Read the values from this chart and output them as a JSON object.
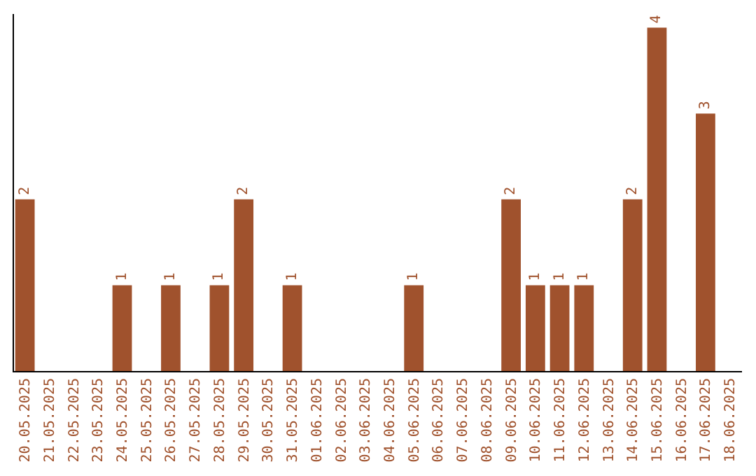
{
  "chart_data": {
    "type": "bar",
    "categories": [
      "20.05.2025",
      "21.05.2025",
      "22.05.2025",
      "23.05.2025",
      "24.05.2025",
      "25.05.2025",
      "26.05.2025",
      "27.05.2025",
      "28.05.2025",
      "29.05.2025",
      "30.05.2025",
      "31.05.2025",
      "01.06.2025",
      "02.06.2025",
      "03.06.2025",
      "04.06.2025",
      "05.06.2025",
      "06.06.2025",
      "07.06.2025",
      "08.06.2025",
      "09.06.2025",
      "10.06.2025",
      "11.06.2025",
      "12.06.2025",
      "13.06.2025",
      "14.06.2025",
      "15.06.2025",
      "16.06.2025",
      "17.06.2025",
      "18.06.2025"
    ],
    "values": [
      2,
      0,
      0,
      0,
      1,
      0,
      1,
      0,
      1,
      2,
      0,
      1,
      0,
      0,
      0,
      0,
      1,
      0,
      0,
      0,
      2,
      1,
      1,
      1,
      0,
      2,
      4,
      0,
      3,
      0
    ],
    "value_labels": [
      "2",
      null,
      null,
      null,
      "1",
      null,
      "1",
      null,
      "1",
      "2",
      null,
      "1",
      null,
      null,
      null,
      null,
      "1",
      null,
      null,
      null,
      "2",
      "1",
      "1",
      "1",
      null,
      "2",
      "4",
      null,
      "3",
      null
    ],
    "color": "#a0522d",
    "ylim": [
      0,
      4.16
    ]
  }
}
